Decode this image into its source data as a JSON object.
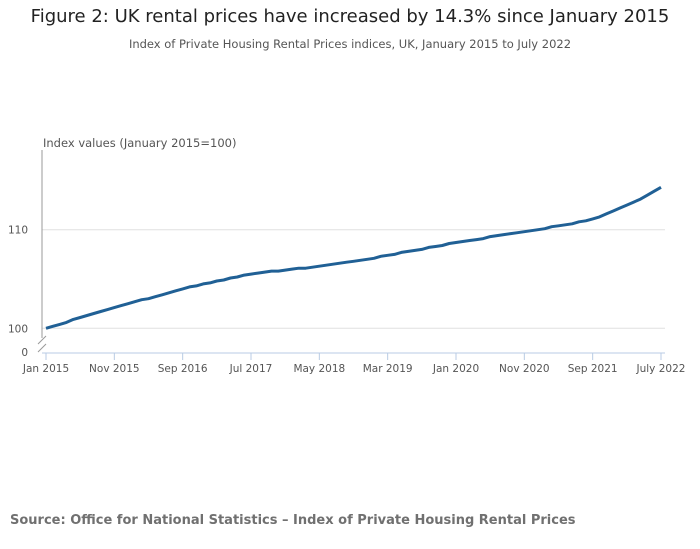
{
  "title": "Figure 2: UK rental prices have increased by 14.3% since January 2015",
  "subtitle": "Index of Private Housing Rental Prices indices, UK, January 2015 to July 2022",
  "source": "Source: Office for National Statistics – Index of Private Housing Rental Prices",
  "chart_data": {
    "type": "line",
    "title": "Figure 2: UK rental prices have increased by 14.3% since January 2015",
    "subtitle": "Index of Private Housing Rental Prices indices, UK, January 2015 to July 2022",
    "ylabel": "Index values (January 2015=100)",
    "xlabel": "",
    "x_start": "Jan 2015",
    "x_end": "July 2022",
    "x_frequency": "monthly",
    "x_ticks": [
      "Jan 2015",
      "Nov 2015",
      "Sep 2016",
      "Jul 2017",
      "May 2018",
      "Mar 2019",
      "Jan 2020",
      "Nov 2020",
      "Sep 2021",
      "July 2022"
    ],
    "y_ticks": [
      0,
      100,
      110
    ],
    "y_axis_break": true,
    "ylim": [
      100,
      115
    ],
    "grid": "horizontal",
    "colors": {
      "line": "#206095",
      "grid": "#e0e0e0",
      "axis": "#b8cbe4"
    },
    "values": [
      100,
      100.2,
      100.4,
      100.6,
      100.9,
      101.1,
      101.3,
      101.5,
      101.7,
      101.9,
      102.1,
      102.3,
      102.5,
      102.7,
      102.9,
      103.0,
      103.2,
      103.4,
      103.6,
      103.8,
      104.0,
      104.2,
      104.3,
      104.5,
      104.6,
      104.8,
      104.9,
      105.1,
      105.2,
      105.4,
      105.5,
      105.6,
      105.7,
      105.8,
      105.8,
      105.9,
      106.0,
      106.1,
      106.1,
      106.2,
      106.3,
      106.4,
      106.5,
      106.6,
      106.7,
      106.8,
      106.9,
      107.0,
      107.1,
      107.3,
      107.4,
      107.5,
      107.7,
      107.8,
      107.9,
      108.0,
      108.2,
      108.3,
      108.4,
      108.6,
      108.7,
      108.8,
      108.9,
      109.0,
      109.1,
      109.3,
      109.4,
      109.5,
      109.6,
      109.7,
      109.8,
      109.9,
      110.0,
      110.1,
      110.3,
      110.4,
      110.5,
      110.6,
      110.8,
      110.9,
      111.1,
      111.3,
      111.6,
      111.9,
      112.2,
      112.5,
      112.8,
      113.1,
      113.5,
      113.9,
      114.3
    ]
  }
}
